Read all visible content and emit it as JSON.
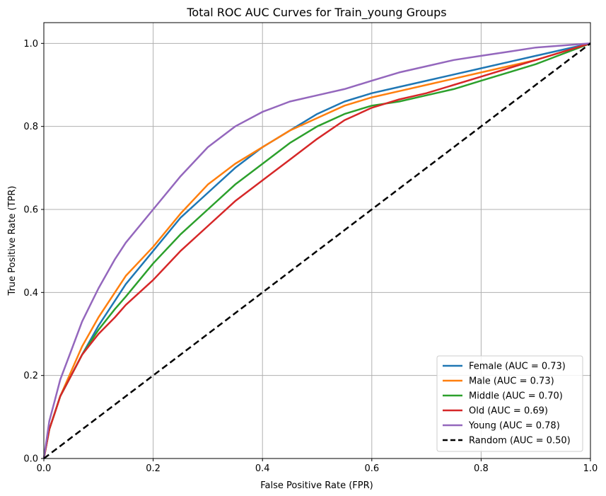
{
  "chart_data": {
    "type": "line",
    "title": "Total ROC AUC Curves for Train_young Groups",
    "xlabel": "False Positive Rate (FPR)",
    "ylabel": "True Positive Rate (TPR)",
    "xlim": [
      0,
      1
    ],
    "ylim": [
      0,
      1.05
    ],
    "xticks": [
      "0.0",
      "0.2",
      "0.4",
      "0.6",
      "0.8",
      "1.0"
    ],
    "yticks": [
      "0.0",
      "0.2",
      "0.4",
      "0.6",
      "0.8",
      "1.0"
    ],
    "grid": true,
    "legend_position": "bottom-right",
    "series": [
      {
        "name": "Female (AUC = 0.73)",
        "color": "#1f77b4",
        "dash": "solid",
        "x": [
          0,
          0.01,
          0.02,
          0.03,
          0.05,
          0.07,
          0.1,
          0.13,
          0.15,
          0.2,
          0.25,
          0.3,
          0.35,
          0.4,
          0.45,
          0.5,
          0.55,
          0.6,
          0.65,
          0.7,
          0.75,
          0.8,
          0.85,
          0.9,
          0.95,
          1.0
        ],
        "y": [
          0,
          0.07,
          0.11,
          0.15,
          0.2,
          0.25,
          0.32,
          0.38,
          0.42,
          0.5,
          0.58,
          0.64,
          0.7,
          0.75,
          0.79,
          0.83,
          0.86,
          0.88,
          0.895,
          0.91,
          0.925,
          0.94,
          0.955,
          0.97,
          0.985,
          1.0
        ]
      },
      {
        "name": "Male (AUC = 0.73)",
        "color": "#ff7f0e",
        "dash": "solid",
        "x": [
          0,
          0.01,
          0.02,
          0.03,
          0.05,
          0.07,
          0.1,
          0.13,
          0.15,
          0.2,
          0.25,
          0.3,
          0.35,
          0.4,
          0.45,
          0.5,
          0.55,
          0.6,
          0.65,
          0.7,
          0.75,
          0.8,
          0.85,
          0.9,
          0.95,
          1.0
        ],
        "y": [
          0,
          0.07,
          0.11,
          0.15,
          0.21,
          0.27,
          0.34,
          0.4,
          0.44,
          0.51,
          0.59,
          0.66,
          0.71,
          0.75,
          0.79,
          0.82,
          0.85,
          0.87,
          0.885,
          0.9,
          0.915,
          0.93,
          0.945,
          0.96,
          0.98,
          1.0
        ]
      },
      {
        "name": "Middle (AUC = 0.70)",
        "color": "#2ca02c",
        "dash": "solid",
        "x": [
          0,
          0.01,
          0.02,
          0.03,
          0.05,
          0.07,
          0.1,
          0.13,
          0.15,
          0.2,
          0.25,
          0.3,
          0.35,
          0.4,
          0.45,
          0.5,
          0.55,
          0.6,
          0.65,
          0.7,
          0.75,
          0.8,
          0.85,
          0.9,
          0.95,
          1.0
        ],
        "y": [
          0,
          0.07,
          0.11,
          0.15,
          0.2,
          0.25,
          0.31,
          0.36,
          0.39,
          0.47,
          0.54,
          0.6,
          0.66,
          0.71,
          0.76,
          0.8,
          0.83,
          0.85,
          0.86,
          0.875,
          0.89,
          0.91,
          0.93,
          0.95,
          0.975,
          1.0
        ]
      },
      {
        "name": "Old (AUC = 0.69)",
        "color": "#d62728",
        "dash": "solid",
        "x": [
          0,
          0.01,
          0.02,
          0.03,
          0.05,
          0.07,
          0.1,
          0.13,
          0.15,
          0.2,
          0.25,
          0.3,
          0.35,
          0.4,
          0.45,
          0.5,
          0.55,
          0.6,
          0.65,
          0.7,
          0.75,
          0.8,
          0.85,
          0.9,
          0.95,
          1.0
        ],
        "y": [
          0,
          0.07,
          0.11,
          0.15,
          0.2,
          0.25,
          0.3,
          0.34,
          0.37,
          0.43,
          0.5,
          0.56,
          0.62,
          0.67,
          0.72,
          0.77,
          0.815,
          0.845,
          0.865,
          0.88,
          0.9,
          0.92,
          0.94,
          0.96,
          0.98,
          1.0
        ]
      },
      {
        "name": "Young (AUC = 0.78)",
        "color": "#9467bd",
        "dash": "solid",
        "x": [
          0,
          0.01,
          0.02,
          0.03,
          0.05,
          0.07,
          0.1,
          0.13,
          0.15,
          0.2,
          0.25,
          0.3,
          0.35,
          0.4,
          0.45,
          0.5,
          0.55,
          0.6,
          0.65,
          0.7,
          0.75,
          0.8,
          0.85,
          0.9,
          0.95,
          1.0
        ],
        "y": [
          0,
          0.09,
          0.14,
          0.19,
          0.26,
          0.33,
          0.41,
          0.48,
          0.52,
          0.6,
          0.68,
          0.75,
          0.8,
          0.835,
          0.86,
          0.875,
          0.89,
          0.91,
          0.93,
          0.945,
          0.96,
          0.97,
          0.98,
          0.99,
          0.995,
          1.0
        ]
      },
      {
        "name": "Random (AUC = 0.50)",
        "color": "#000000",
        "dash": "dashed",
        "x": [
          0,
          1
        ],
        "y": [
          0,
          1
        ]
      }
    ]
  }
}
